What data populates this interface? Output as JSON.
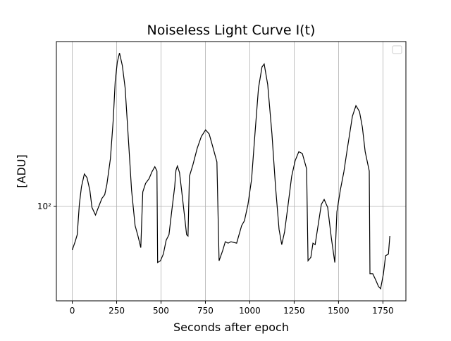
{
  "chart_data": {
    "type": "line",
    "title": "Noiseless Light Curve I(t)",
    "x_label": "Seconds after epoch",
    "y_label": "[ADU]",
    "x": [
      0,
      16,
      28,
      40,
      52,
      68,
      83,
      99,
      111,
      131,
      147,
      167,
      183,
      195,
      215,
      231,
      242,
      254,
      266,
      282,
      298,
      318,
      334,
      354,
      370,
      386,
      397,
      413,
      433,
      449,
      465,
      477,
      481,
      497,
      513,
      529,
      545,
      560,
      577,
      584,
      592,
      604,
      616,
      632,
      644,
      652,
      660,
      680,
      704,
      727,
      751,
      771,
      791,
      815,
      827,
      847,
      862,
      878,
      894,
      926,
      954,
      970,
      990,
      1010,
      1029,
      1049,
      1069,
      1081,
      1101,
      1125,
      1145,
      1165,
      1180,
      1196,
      1216,
      1236,
      1256,
      1276,
      1296,
      1320,
      1328,
      1344,
      1356,
      1368,
      1387,
      1403,
      1419,
      1439,
      1459,
      1479,
      1491,
      1510,
      1530,
      1550,
      1578,
      1598,
      1618,
      1634,
      1650,
      1673,
      1677,
      1693,
      1709,
      1725,
      1737,
      1753,
      1765,
      1781,
      1789
    ],
    "series": [
      {
        "color": "#000000",
        "values": [
          65.5,
          71,
          76,
          102,
          121,
          137,
          132,
          117,
          99,
          92,
          99,
          108,
          112,
          124,
          159,
          232,
          337,
          406,
          443,
          392,
          315,
          182,
          117,
          83,
          75,
          67,
          115,
          125,
          131,
          140,
          147,
          141,
          58,
          59,
          63,
          72,
          76,
          95,
          121,
          142,
          148,
          139,
          117,
          92,
          76,
          75,
          134,
          150,
          176,
          197,
          210,
          202,
          179,
          154,
          59,
          65,
          71,
          70,
          71,
          70,
          83,
          87,
          102,
          130,
          202,
          315,
          387,
          398,
          326,
          202,
          121,
          80,
          69,
          78,
          102,
          134,
          156,
          170,
          167,
          144,
          59,
          61,
          70,
          69,
          85,
          102,
          107,
          99,
          74,
          58,
          95,
          117,
          140,
          176,
          240,
          266,
          251,
          216,
          170,
          141,
          52,
          52,
          49,
          46,
          45,
          52,
          62,
          63,
          75
        ]
      }
    ],
    "xlim": [
      -89.5,
      1879.5
    ],
    "xticks": [
      0,
      250,
      500,
      750,
      1000,
      1250,
      1500,
      1750
    ],
    "ylim": [
      40,
      495
    ],
    "yticks": [
      {
        "value": 100,
        "label": "10²"
      }
    ],
    "log_y": true,
    "grid": true
  }
}
